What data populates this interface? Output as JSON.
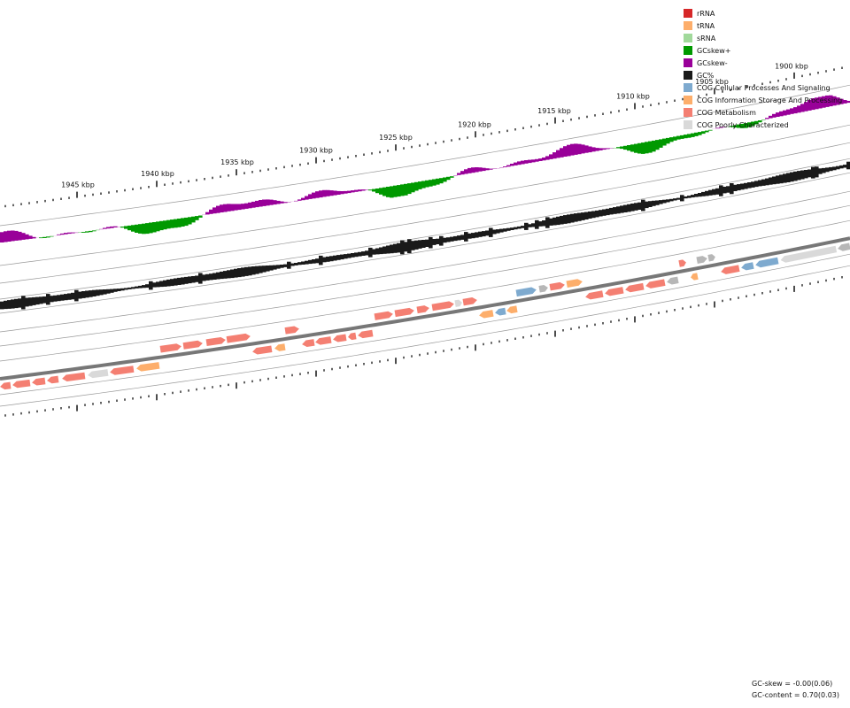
{
  "legend": {
    "items": [
      {
        "label": "rRNA",
        "color": "#d62728"
      },
      {
        "label": "tRNA",
        "color": "#fdae6b"
      },
      {
        "label": "sRNA",
        "color": "#a1d99b"
      },
      {
        "label": "GCskew+",
        "color": "#009900"
      },
      {
        "label": "GCskew-",
        "color": "#990099"
      },
      {
        "label": "GC%",
        "color": "#1a1a1a"
      },
      {
        "label": "COG Cellular Processes And Signaling",
        "color": "#7eaacf"
      },
      {
        "label": "COG Information Storage And Processing",
        "color": "#fdae6b"
      },
      {
        "label": "COG Metabolism",
        "color": "#f47f72"
      },
      {
        "label": "COG Poorly Characterized",
        "color": "#d9d9d9"
      }
    ]
  },
  "ruler": {
    "labels": [
      "1945 kbp",
      "1940 kbp",
      "1935 kbp",
      "1930 kbp",
      "1925 kbp",
      "1920 kbp",
      "1915 kbp",
      "1910 kbp",
      "1905 kbp",
      "1900 kbp"
    ]
  },
  "stats": {
    "gc_skew": "GC-skew = -0.00(0.06)",
    "gc_content": "GC-content = 0.70(0.03)"
  }
}
